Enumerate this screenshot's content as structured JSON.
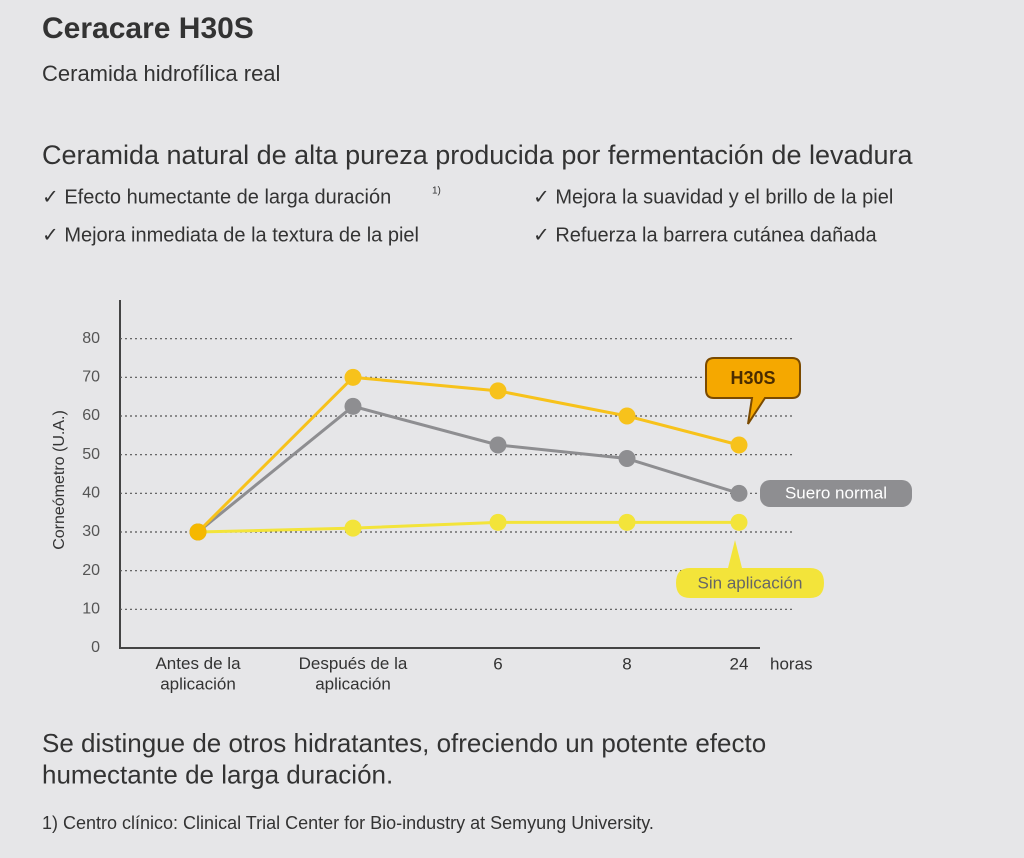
{
  "header": {
    "title": "Ceracare H30S",
    "subtitle": "Ceramida hidrofílica real"
  },
  "heading": "Ceramida natural de alta pureza producida por fermentación de levadura",
  "features": [
    {
      "text": "✓ Efecto humectante de larga duración",
      "note": "1)"
    },
    {
      "text": "✓ Mejora inmediata de la textura de la piel"
    },
    {
      "text": "✓ Mejora la suavidad y el brillo de la piel"
    },
    {
      "text": "✓ Refuerza la barrera cutánea dañada"
    }
  ],
  "chart_data": {
    "type": "line",
    "ylabel": "Corneómetro (U.A.)",
    "xlabel": "horas",
    "categories": [
      "Antes de la\naplicación",
      "Después de la\naplicación",
      "6",
      "8",
      "24"
    ],
    "ylim": [
      0,
      90
    ],
    "yticks": [
      0,
      10,
      20,
      30,
      40,
      50,
      60,
      70,
      80
    ],
    "grid": true,
    "series": [
      {
        "name": "H30S",
        "color": "#f7c21b",
        "values": [
          30,
          70,
          66.5,
          60,
          52.5
        ]
      },
      {
        "name": "Suero normal",
        "color": "#8e8e91",
        "values": [
          30,
          62.5,
          52.5,
          49,
          40
        ]
      },
      {
        "name": "Sin aplicación",
        "color": "#f3e43a",
        "values": [
          30,
          31,
          32.5,
          32.5,
          32.5
        ]
      }
    ]
  },
  "footer": {
    "text": "Se distingue de otros hidratantes, ofreciendo un potente efecto\nhumectante de larga duración.",
    "footnote": "1) Centro clínico: Clinical Trial Center for Bio-industry at Semyung University."
  }
}
